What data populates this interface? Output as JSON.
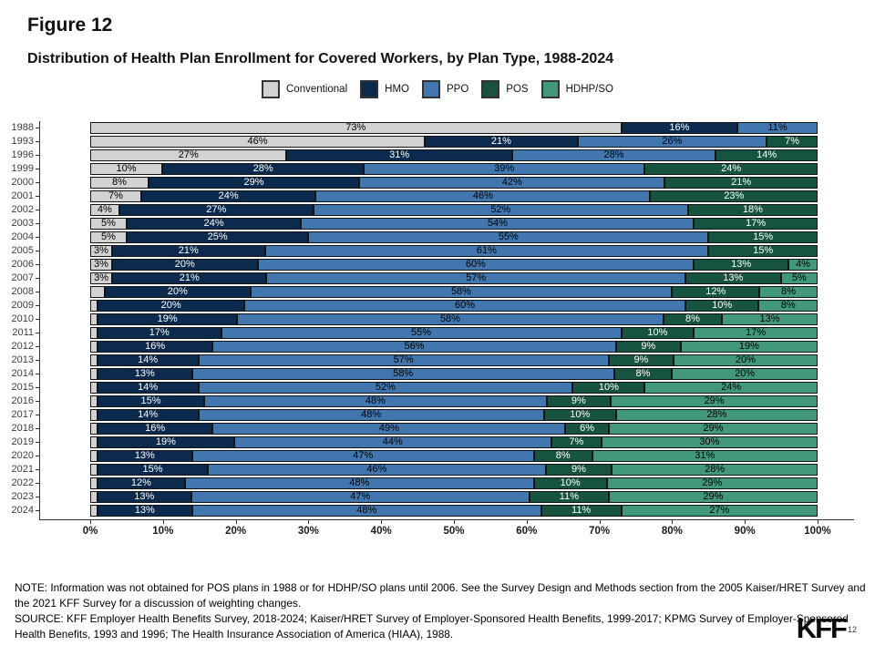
{
  "header": {
    "figure_label": "Figure 12",
    "title": "Distribution of Health Plan Enrollment for Covered Workers, by Plan Type, 1988-2024"
  },
  "chart_data": {
    "type": "bar",
    "orientation": "horizontal-stacked",
    "title": "Distribution of Health Plan Enrollment for Covered Workers, by Plan Type, 1988-2024",
    "xlabel": "",
    "ylabel": "",
    "xlim": [
      0,
      100
    ],
    "legend_position": "top",
    "grid": false,
    "series_names": [
      "Conventional",
      "HMO",
      "PPO",
      "POS",
      "HDHP/SO"
    ],
    "series_keys": [
      "conventional",
      "hmo",
      "ppo",
      "pos",
      "hdhp-so"
    ],
    "colors": [
      "#d2d2d2",
      "#0c2a4d",
      "#4177ae",
      "#175440",
      "#41987b"
    ],
    "label_text_colors": [
      "#000000",
      "#ffffff",
      "#000000",
      "#ffffff",
      "#000000"
    ],
    "min_label_value": 3,
    "x_ticks": [
      "0%",
      "10%",
      "20%",
      "30%",
      "40%",
      "50%",
      "60%",
      "70%",
      "80%",
      "90%",
      "100%"
    ],
    "categories": [
      "1988",
      "1993",
      "1996",
      "1999",
      "2000",
      "2001",
      "2002",
      "2003",
      "2004",
      "2005",
      "2006",
      "2007",
      "2008",
      "2009",
      "2010",
      "2011",
      "2012",
      "2013",
      "2014",
      "2015",
      "2016",
      "2017",
      "2018",
      "2019",
      "2020",
      "2021",
      "2022",
      "2023",
      "2024"
    ],
    "rows": [
      {
        "year": "1988",
        "values": [
          73,
          16,
          11,
          0,
          0
        ]
      },
      {
        "year": "1993",
        "values": [
          46,
          21,
          26,
          7,
          0
        ]
      },
      {
        "year": "1996",
        "values": [
          27,
          31,
          28,
          14,
          0
        ]
      },
      {
        "year": "1999",
        "values": [
          10,
          28,
          39,
          24,
          0
        ]
      },
      {
        "year": "2000",
        "values": [
          8,
          29,
          42,
          21,
          0
        ]
      },
      {
        "year": "2001",
        "values": [
          7,
          24,
          46,
          23,
          0
        ]
      },
      {
        "year": "2002",
        "values": [
          4,
          27,
          52,
          18,
          0
        ]
      },
      {
        "year": "2003",
        "values": [
          5,
          24,
          54,
          17,
          0
        ]
      },
      {
        "year": "2004",
        "values": [
          5,
          25,
          55,
          15,
          0
        ]
      },
      {
        "year": "2005",
        "values": [
          3,
          21,
          61,
          15,
          0
        ]
      },
      {
        "year": "2006",
        "values": [
          3,
          20,
          60,
          13,
          4
        ]
      },
      {
        "year": "2007",
        "values": [
          3,
          21,
          57,
          13,
          5
        ]
      },
      {
        "year": "2008",
        "values": [
          2,
          20,
          58,
          12,
          8
        ]
      },
      {
        "year": "2009",
        "values": [
          1,
          20,
          60,
          10,
          8
        ]
      },
      {
        "year": "2010",
        "values": [
          1,
          19,
          58,
          8,
          13
        ]
      },
      {
        "year": "2011",
        "values": [
          1,
          17,
          55,
          10,
          17
        ]
      },
      {
        "year": "2012",
        "values": [
          1,
          16,
          56,
          9,
          19
        ]
      },
      {
        "year": "2013",
        "values": [
          1,
          14,
          57,
          9,
          20
        ]
      },
      {
        "year": "2014",
        "values": [
          1,
          13,
          58,
          8,
          20
        ]
      },
      {
        "year": "2015",
        "values": [
          1,
          14,
          52,
          10,
          24
        ]
      },
      {
        "year": "2016",
        "values": [
          1,
          15,
          48,
          9,
          29
        ]
      },
      {
        "year": "2017",
        "values": [
          1,
          14,
          48,
          10,
          28
        ]
      },
      {
        "year": "2018",
        "values": [
          1,
          16,
          49,
          6,
          29
        ]
      },
      {
        "year": "2019",
        "values": [
          1,
          19,
          44,
          7,
          30
        ]
      },
      {
        "year": "2020",
        "values": [
          1,
          13,
          47,
          8,
          31
        ]
      },
      {
        "year": "2021",
        "values": [
          1,
          15,
          46,
          9,
          28
        ]
      },
      {
        "year": "2022",
        "values": [
          1,
          12,
          48,
          10,
          29
        ]
      },
      {
        "year": "2023",
        "values": [
          1,
          13,
          47,
          11,
          29
        ]
      },
      {
        "year": "2024",
        "values": [
          1,
          13,
          48,
          11,
          27
        ]
      }
    ]
  },
  "footer": {
    "note": "NOTE: Information was not obtained for POS plans in 1988 or for HDHP/SO plans until 2006. See the Survey Design and Methods section from the 2005 Kaiser/HRET Survey and the 2021 KFF Survey for a discussion of weighting changes.",
    "source": "SOURCE: KFF Employer Health Benefits Survey, 2018-2024; Kaiser/HRET Survey of Employer-Sponsored Health Benefits, 1999-2017; KPMG Survey of Employer-Sponsored Health Benefits, 1993 and 1996; The Health Insurance Association of America (HIAA), 1988.",
    "logo": "KFF",
    "page_number": "12"
  }
}
